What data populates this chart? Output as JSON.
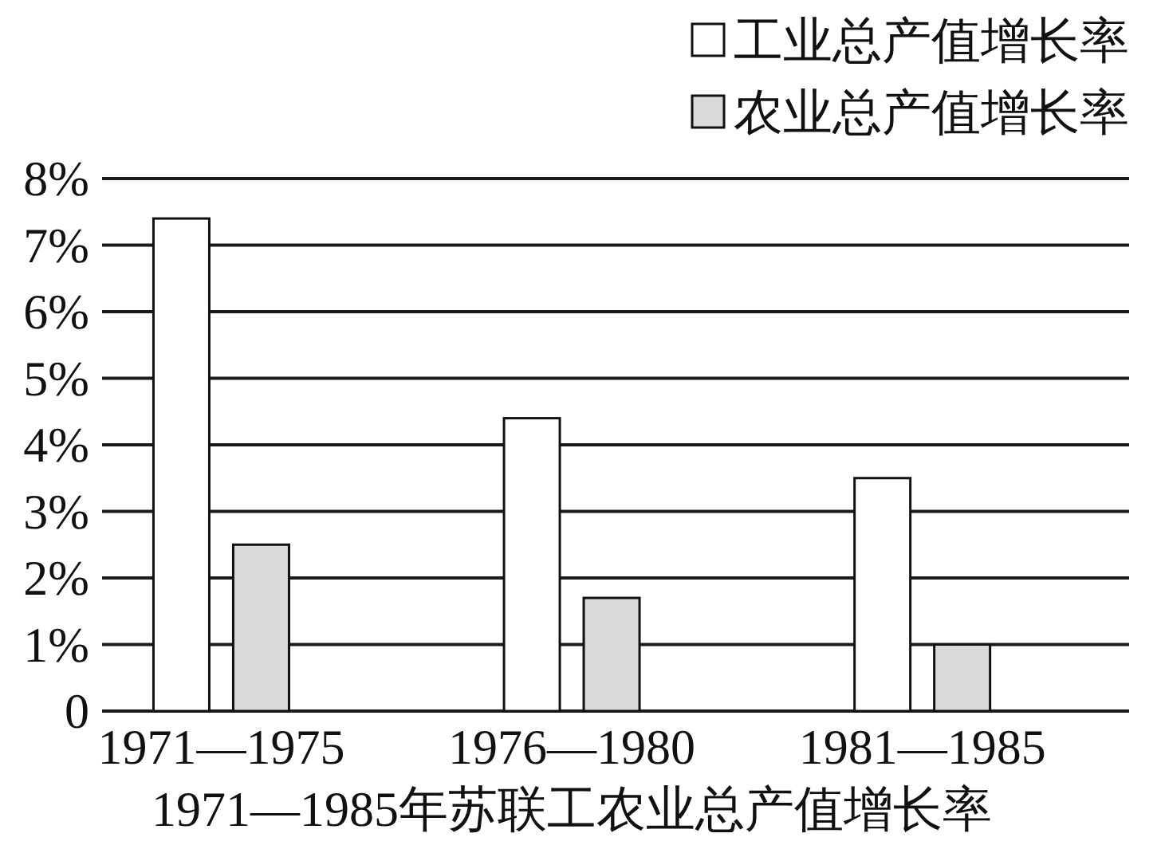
{
  "chart_data": {
    "type": "bar",
    "title": "1971—1985年苏联工农业总产值增长率",
    "categories": [
      "1971—1975",
      "1976—1980",
      "1981—1985"
    ],
    "series": [
      {
        "name": "工业总产值增长率",
        "color": "#ffffff",
        "values": [
          7.4,
          4.4,
          3.5
        ]
      },
      {
        "name": "农业总产值增长率",
        "color": "#d9d9d9",
        "values": [
          2.5,
          1.7,
          1.0
        ]
      }
    ],
    "ylim": [
      0,
      8
    ],
    "yticks": [
      0,
      {
        "value": 1,
        "label": "1%"
      },
      {
        "value": 2,
        "label": "2%"
      },
      {
        "value": 3,
        "label": "3%"
      },
      {
        "value": 4,
        "label": "4%"
      },
      {
        "value": 5,
        "label": "5%"
      },
      {
        "value": 6,
        "label": "6%"
      },
      {
        "value": 7,
        "label": "7%"
      },
      {
        "value": 8,
        "label": "8%"
      }
    ],
    "grid": "y",
    "legend": "top right"
  }
}
